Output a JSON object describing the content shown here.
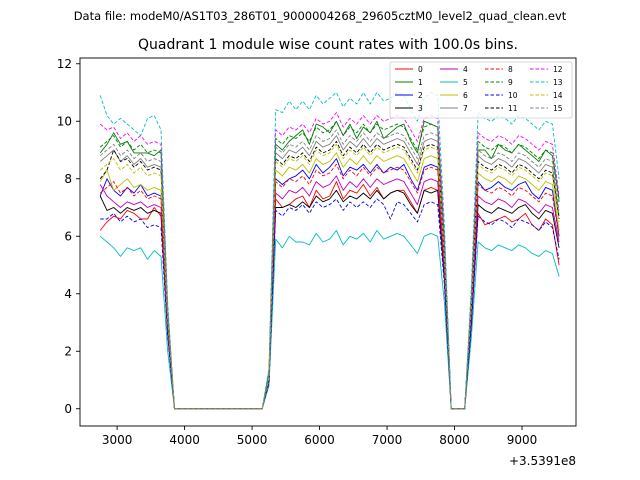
{
  "header": {
    "file_line": "Data file: modeM0/AS1T03_286T01_9000004268_29605cztM0_level2_quad_clean.evt"
  },
  "chart_data": {
    "type": "line",
    "title": "Quadrant 1 module wise count rates with 100.0s bins.",
    "xlabel": "",
    "ylabel": "",
    "x_offset_label": "+3.5391e8",
    "xlim": [
      2450,
      9800
    ],
    "ylim": [
      -0.6,
      12.2
    ],
    "xticks": [
      3000,
      4000,
      5000,
      6000,
      7000,
      8000,
      9000
    ],
    "xtick_labels": [
      "3000",
      "4000",
      "5000",
      "6000",
      "7000",
      "8000",
      "9000"
    ],
    "yticks": [
      0,
      2,
      4,
      6,
      8,
      10,
      12
    ],
    "ytick_labels": [
      "0",
      "2",
      "4",
      "6",
      "8",
      "10",
      "12"
    ],
    "legend_position": "top-right",
    "x": [
      2750,
      2850,
      2950,
      3050,
      3150,
      3250,
      3350,
      3450,
      3550,
      3650,
      3750,
      3850,
      3950,
      4050,
      4150,
      4250,
      4350,
      4450,
      4550,
      4650,
      4750,
      4850,
      4950,
      5050,
      5150,
      5250,
      5350,
      5450,
      5550,
      5650,
      5750,
      5850,
      5950,
      6050,
      6150,
      6250,
      6350,
      6450,
      6550,
      6650,
      6750,
      6850,
      6950,
      7050,
      7150,
      7250,
      7350,
      7450,
      7550,
      7650,
      7750,
      7850,
      7950,
      8050,
      8150,
      8250,
      8350,
      8450,
      8550,
      8650,
      8750,
      8850,
      8950,
      9050,
      9150,
      9250,
      9350,
      9450,
      9550
    ],
    "series": [
      {
        "name": "0",
        "color": "#ff0000",
        "dash": "solid",
        "values": [
          6.2,
          6.5,
          6.7,
          6.6,
          6.9,
          6.8,
          6.6,
          6.6,
          7.0,
          6.7,
          2.6,
          0,
          0,
          0,
          0,
          0,
          0,
          0,
          0,
          0,
          0,
          0,
          0,
          0,
          0,
          1.0,
          7.3,
          7.0,
          7.1,
          7.3,
          7.4,
          7.0,
          7.6,
          7.3,
          7.4,
          7.9,
          7.3,
          7.6,
          7.5,
          7.8,
          7.4,
          7.7,
          7.3,
          7.5,
          7.6,
          7.6,
          7.2,
          6.8,
          7.6,
          7.7,
          7.6,
          4.6,
          0,
          0,
          0,
          3.0,
          6.8,
          6.4,
          6.5,
          6.6,
          6.7,
          6.5,
          6.6,
          6.8,
          6.4,
          6.2,
          6.6,
          6.4,
          5.0
        ]
      },
      {
        "name": "1",
        "color": "#008000",
        "dash": "solid",
        "values": [
          8.9,
          9.2,
          9.6,
          9.2,
          9.3,
          8.9,
          8.9,
          8.9,
          8.8,
          9.0,
          3.3,
          0,
          0,
          0,
          0,
          0,
          0,
          0,
          0,
          0,
          0,
          0,
          0,
          0,
          0,
          1.2,
          9.2,
          9.0,
          9.3,
          9.5,
          9.7,
          9.2,
          9.9,
          9.8,
          9.6,
          10.0,
          9.5,
          9.9,
          9.4,
          9.8,
          9.6,
          10.0,
          9.4,
          9.6,
          9.8,
          9.9,
          9.3,
          8.9,
          10.0,
          9.9,
          9.8,
          5.8,
          0,
          0,
          0,
          3.9,
          9.0,
          9.0,
          8.7,
          9.2,
          9.0,
          8.9,
          9.2,
          9.0,
          8.8,
          8.6,
          9.0,
          8.8,
          7.3
        ]
      },
      {
        "name": "2",
        "color": "#0000ff",
        "dash": "solid",
        "values": [
          7.4,
          8.0,
          7.6,
          7.4,
          7.7,
          7.5,
          7.8,
          7.4,
          7.5,
          7.4,
          2.8,
          0,
          0,
          0,
          0,
          0,
          0,
          0,
          0,
          0,
          0,
          0,
          0,
          0,
          0,
          1.1,
          8.0,
          7.8,
          8.0,
          8.1,
          8.3,
          8.0,
          8.5,
          8.2,
          8.4,
          8.7,
          8.1,
          8.4,
          8.3,
          8.5,
          8.2,
          8.5,
          8.2,
          8.4,
          8.3,
          8.5,
          8.0,
          7.6,
          8.4,
          8.5,
          8.4,
          5.1,
          0,
          0,
          0,
          3.4,
          7.9,
          7.6,
          7.7,
          7.9,
          7.7,
          7.6,
          7.8,
          7.9,
          7.5,
          7.3,
          7.7,
          7.6,
          6.0
        ]
      },
      {
        "name": "3",
        "color": "#000000",
        "dash": "solid",
        "values": [
          7.4,
          6.9,
          7.0,
          6.8,
          7.0,
          6.9,
          7.0,
          6.8,
          6.9,
          6.8,
          2.6,
          0,
          0,
          0,
          0,
          0,
          0,
          0,
          0,
          0,
          0,
          0,
          0,
          0,
          0,
          1.0,
          7.0,
          7.0,
          7.1,
          7.0,
          7.2,
          7.0,
          7.4,
          7.2,
          7.3,
          7.6,
          7.2,
          7.4,
          7.3,
          7.5,
          7.3,
          7.6,
          7.3,
          7.5,
          7.6,
          7.5,
          7.1,
          6.8,
          7.6,
          7.5,
          7.6,
          4.5,
          0,
          0,
          0,
          3.0,
          7.1,
          6.9,
          6.8,
          7.0,
          6.9,
          6.8,
          7.0,
          7.1,
          6.8,
          6.6,
          6.9,
          6.8,
          5.6
        ]
      },
      {
        "name": "4",
        "color": "#bf00bf",
        "dash": "solid",
        "values": [
          7.8,
          7.4,
          7.2,
          7.0,
          7.2,
          7.1,
          7.2,
          7.0,
          7.1,
          7.0,
          2.7,
          0,
          0,
          0,
          0,
          0,
          0,
          0,
          0,
          0,
          0,
          0,
          0,
          0,
          0,
          1.0,
          7.5,
          7.3,
          7.6,
          7.5,
          7.7,
          7.4,
          7.9,
          7.7,
          7.8,
          8.1,
          7.6,
          7.9,
          7.7,
          8.0,
          7.7,
          8.0,
          7.8,
          7.9,
          8.0,
          7.9,
          7.5,
          7.1,
          7.9,
          8.0,
          7.9,
          4.8,
          0,
          0,
          0,
          3.2,
          7.4,
          7.2,
          7.1,
          7.3,
          7.2,
          7.0,
          7.3,
          7.2,
          7.0,
          6.8,
          7.1,
          7.0,
          5.8
        ]
      },
      {
        "name": "5",
        "color": "#00bfbf",
        "dash": "solid",
        "values": [
          6.0,
          5.8,
          5.6,
          5.3,
          5.6,
          5.5,
          5.6,
          5.2,
          5.5,
          5.3,
          2.0,
          0,
          0,
          0,
          0,
          0,
          0,
          0,
          0,
          0,
          0,
          0,
          0,
          0,
          0,
          0.8,
          5.9,
          5.6,
          6.0,
          5.8,
          5.8,
          5.7,
          6.1,
          5.8,
          5.9,
          6.2,
          5.7,
          6.0,
          5.9,
          6.1,
          5.8,
          6.2,
          5.9,
          6.0,
          6.1,
          6.0,
          5.7,
          5.4,
          6.0,
          6.1,
          6.0,
          3.7,
          0,
          0,
          0,
          2.5,
          5.8,
          5.6,
          5.5,
          5.7,
          5.6,
          5.5,
          5.7,
          5.6,
          5.4,
          5.3,
          5.5,
          5.4,
          4.6
        ]
      },
      {
        "name": "6",
        "color": "#bfbf00",
        "dash": "solid",
        "values": [
          7.9,
          8.3,
          7.6,
          7.8,
          8.0,
          7.7,
          7.8,
          7.6,
          7.7,
          7.6,
          2.9,
          0,
          0,
          0,
          0,
          0,
          0,
          0,
          0,
          0,
          0,
          0,
          0,
          0,
          0,
          1.1,
          8.3,
          8.1,
          8.4,
          8.3,
          8.5,
          8.2,
          8.7,
          8.5,
          8.6,
          8.9,
          8.4,
          8.7,
          8.5,
          8.8,
          8.5,
          8.8,
          8.6,
          8.7,
          8.8,
          8.7,
          8.3,
          7.9,
          8.7,
          8.8,
          8.7,
          5.2,
          0,
          0,
          0,
          3.5,
          8.2,
          8.0,
          7.9,
          8.1,
          8.0,
          7.8,
          8.1,
          8.0,
          7.8,
          7.6,
          7.9,
          7.8,
          6.2
        ]
      },
      {
        "name": "7",
        "color": "#808080",
        "dash": "solid",
        "values": [
          8.6,
          8.8,
          9.0,
          8.6,
          8.8,
          8.5,
          8.7,
          8.4,
          8.5,
          8.4,
          3.2,
          0,
          0,
          0,
          0,
          0,
          0,
          0,
          0,
          0,
          0,
          0,
          0,
          0,
          0,
          1.2,
          8.9,
          8.7,
          9.0,
          8.9,
          9.1,
          8.8,
          9.3,
          9.1,
          9.2,
          9.5,
          9.0,
          9.3,
          9.1,
          9.4,
          9.1,
          9.4,
          9.2,
          9.3,
          9.4,
          9.3,
          8.9,
          8.5,
          9.3,
          9.4,
          9.3,
          5.5,
          0,
          0,
          0,
          3.7,
          8.8,
          8.6,
          8.5,
          8.7,
          8.6,
          8.4,
          8.7,
          8.6,
          8.4,
          8.2,
          8.5,
          8.4,
          6.7
        ]
      },
      {
        "name": "8",
        "color": "#ff0000",
        "dash": "dashed",
        "values": [
          7.5,
          7.7,
          7.9,
          7.5,
          7.7,
          7.4,
          7.6,
          7.3,
          7.4,
          7.3,
          2.8,
          0,
          0,
          0,
          0,
          0,
          0,
          0,
          0,
          0,
          0,
          0,
          0,
          0,
          0,
          1.1,
          7.9,
          7.7,
          8.0,
          7.9,
          8.1,
          7.8,
          8.3,
          8.1,
          8.2,
          8.5,
          8.0,
          8.3,
          8.1,
          8.4,
          8.1,
          8.4,
          8.2,
          8.3,
          8.4,
          8.3,
          7.9,
          7.5,
          8.3,
          8.4,
          8.3,
          5.0,
          0,
          0,
          0,
          3.4,
          7.8,
          7.6,
          7.5,
          7.7,
          7.6,
          7.4,
          7.7,
          7.6,
          7.4,
          7.2,
          7.5,
          7.4,
          6.0
        ]
      },
      {
        "name": "9",
        "color": "#008000",
        "dash": "dashed",
        "values": [
          9.1,
          9.3,
          9.5,
          9.1,
          9.3,
          9.0,
          9.2,
          8.9,
          9.0,
          8.9,
          3.4,
          0,
          0,
          0,
          0,
          0,
          0,
          0,
          0,
          0,
          0,
          0,
          0,
          0,
          0,
          1.3,
          9.4,
          9.2,
          9.5,
          9.4,
          9.6,
          9.3,
          9.8,
          9.6,
          9.7,
          10.0,
          9.5,
          9.8,
          9.6,
          9.9,
          9.6,
          9.9,
          9.7,
          9.8,
          9.9,
          9.8,
          9.4,
          9.0,
          9.8,
          9.9,
          9.8,
          5.8,
          0,
          0,
          0,
          3.9,
          9.3,
          9.1,
          9.0,
          9.2,
          9.1,
          8.9,
          9.2,
          9.1,
          8.9,
          8.7,
          9.0,
          8.9,
          7.2
        ]
      },
      {
        "name": "10",
        "color": "#0000ff",
        "dash": "dashed",
        "values": [
          6.6,
          6.6,
          6.8,
          6.5,
          6.7,
          6.5,
          6.6,
          6.3,
          6.4,
          6.3,
          2.5,
          0,
          0,
          0,
          0,
          0,
          0,
          0,
          0,
          0,
          0,
          0,
          0,
          0,
          0,
          0.9,
          6.9,
          6.7,
          7.0,
          6.9,
          7.1,
          6.8,
          7.2,
          7.0,
          7.1,
          7.3,
          6.9,
          7.2,
          7.0,
          7.2,
          7.0,
          7.3,
          7.1,
          6.6,
          7.2,
          7.1,
          6.8,
          6.5,
          7.1,
          7.2,
          7.1,
          4.3,
          0,
          0,
          0,
          2.9,
          6.7,
          6.5,
          6.4,
          6.6,
          6.5,
          6.3,
          6.6,
          6.5,
          6.4,
          6.2,
          6.5,
          6.3,
          5.2
        ]
      },
      {
        "name": "11",
        "color": "#000000",
        "dash": "dashed",
        "values": [
          8.0,
          8.3,
          9.0,
          8.6,
          8.7,
          8.4,
          8.6,
          8.3,
          8.4,
          8.3,
          3.1,
          0,
          0,
          0,
          0,
          0,
          0,
          0,
          0,
          0,
          0,
          0,
          0,
          0,
          0,
          1.1,
          8.7,
          8.5,
          8.8,
          8.7,
          8.9,
          8.6,
          9.1,
          8.9,
          9.0,
          9.3,
          8.8,
          9.1,
          8.9,
          9.2,
          8.9,
          9.2,
          9.0,
          9.1,
          9.2,
          9.1,
          8.7,
          8.3,
          9.1,
          9.2,
          9.1,
          5.4,
          0,
          0,
          0,
          3.6,
          8.6,
          8.4,
          8.3,
          8.5,
          8.4,
          8.2,
          8.5,
          8.4,
          8.2,
          8.0,
          8.3,
          8.2,
          6.6
        ]
      },
      {
        "name": "12",
        "color": "#ff00ff",
        "dash": "dashed",
        "values": [
          9.9,
          9.7,
          9.8,
          9.4,
          9.6,
          9.3,
          9.5,
          9.2,
          9.3,
          9.2,
          3.5,
          0,
          0,
          0,
          0,
          0,
          0,
          0,
          0,
          0,
          0,
          0,
          0,
          0,
          0,
          1.3,
          9.7,
          9.5,
          9.8,
          9.7,
          9.9,
          9.6,
          10.1,
          9.9,
          10.0,
          10.3,
          9.8,
          10.1,
          9.9,
          10.2,
          9.9,
          10.2,
          10.0,
          10.1,
          10.2,
          10.1,
          9.7,
          9.3,
          10.1,
          10.2,
          10.1,
          6.0,
          0,
          0,
          0,
          4.0,
          9.6,
          9.4,
          9.3,
          9.5,
          9.4,
          9.2,
          9.5,
          9.4,
          9.2,
          9.0,
          9.3,
          9.2,
          7.4
        ]
      },
      {
        "name": "13",
        "color": "#00bfbf",
        "dash": "dashed",
        "values": [
          10.9,
          10.2,
          9.9,
          10.1,
          9.9,
          9.7,
          9.5,
          10.1,
          10.2,
          9.7,
          3.7,
          0,
          0,
          0,
          0,
          0,
          0,
          0,
          0,
          0,
          0,
          0,
          0,
          0,
          0,
          1.4,
          10.4,
          10.3,
          10.7,
          10.4,
          10.7,
          10.4,
          10.9,
          10.6,
          10.8,
          11.0,
          10.5,
          10.8,
          10.6,
          11.0,
          10.6,
          11.0,
          10.7,
          10.8,
          11.0,
          10.9,
          10.4,
          10.0,
          10.8,
          11.0,
          10.9,
          6.4,
          0,
          0,
          0,
          4.3,
          10.3,
          10.1,
          10.0,
          10.2,
          10.1,
          9.9,
          10.2,
          10.1,
          9.9,
          9.7,
          10.0,
          9.9,
          8.0
        ]
      },
      {
        "name": "14",
        "color": "#bfbf00",
        "dash": "dashed",
        "values": [
          8.3,
          8.5,
          8.7,
          8.3,
          8.5,
          8.2,
          8.4,
          8.1,
          8.2,
          8.1,
          3.1,
          0,
          0,
          0,
          0,
          0,
          0,
          0,
          0,
          0,
          0,
          0,
          0,
          0,
          0,
          1.1,
          8.6,
          8.4,
          8.7,
          8.6,
          8.8,
          8.5,
          9.0,
          8.8,
          8.9,
          9.2,
          8.7,
          9.0,
          8.8,
          9.1,
          8.8,
          9.1,
          8.9,
          9.0,
          9.1,
          9.0,
          8.6,
          8.2,
          9.0,
          9.1,
          9.0,
          5.3,
          0,
          0,
          0,
          3.6,
          8.5,
          8.3,
          8.2,
          8.4,
          8.3,
          8.1,
          8.4,
          8.3,
          8.1,
          7.9,
          8.2,
          8.1,
          6.5
        ]
      },
      {
        "name": "15",
        "color": "#808080",
        "dash": "dashed",
        "values": [
          8.8,
          9.0,
          9.2,
          8.8,
          9.0,
          8.7,
          8.9,
          8.6,
          8.7,
          8.6,
          3.3,
          0,
          0,
          0,
          0,
          0,
          0,
          0,
          0,
          0,
          0,
          0,
          0,
          0,
          0,
          1.2,
          9.1,
          8.9,
          9.2,
          9.1,
          9.3,
          9.0,
          9.5,
          9.3,
          9.4,
          9.7,
          9.2,
          9.5,
          9.3,
          9.6,
          9.3,
          9.6,
          9.4,
          9.5,
          9.6,
          9.5,
          9.1,
          8.7,
          9.5,
          9.6,
          9.5,
          5.6,
          0,
          0,
          0,
          3.8,
          9.0,
          8.8,
          8.7,
          8.9,
          8.8,
          8.6,
          8.9,
          8.8,
          8.6,
          8.4,
          8.7,
          8.6,
          6.9
        ]
      }
    ]
  }
}
